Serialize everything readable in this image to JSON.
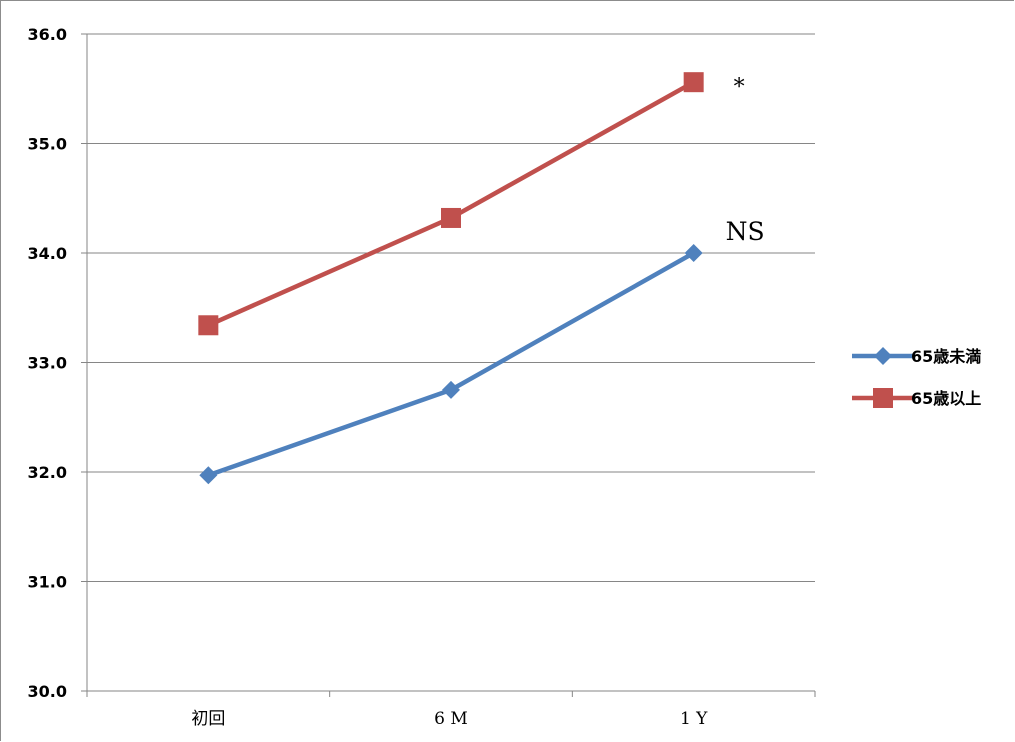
{
  "chart_data": {
    "type": "line",
    "categories": [
      "初回",
      "6 M",
      "1 Y"
    ],
    "ylim": [
      30.0,
      36.0
    ],
    "yticks": [
      "30.0",
      "31.0",
      "32.0",
      "33.0",
      "34.0",
      "35.0",
      "36.0"
    ],
    "grid": true,
    "legend_position": "right",
    "series": [
      {
        "name": "65歳未満",
        "values": [
          31.97,
          32.75,
          34.0
        ],
        "color": "#4f81bd",
        "marker": "diamond"
      },
      {
        "name": "65歳以上",
        "values": [
          33.34,
          34.32,
          35.56
        ],
        "color": "#c0504d",
        "marker": "square"
      }
    ],
    "annotations": [
      {
        "text": "*",
        "series": 1
      },
      {
        "text": "NS",
        "series": 0
      }
    ]
  }
}
